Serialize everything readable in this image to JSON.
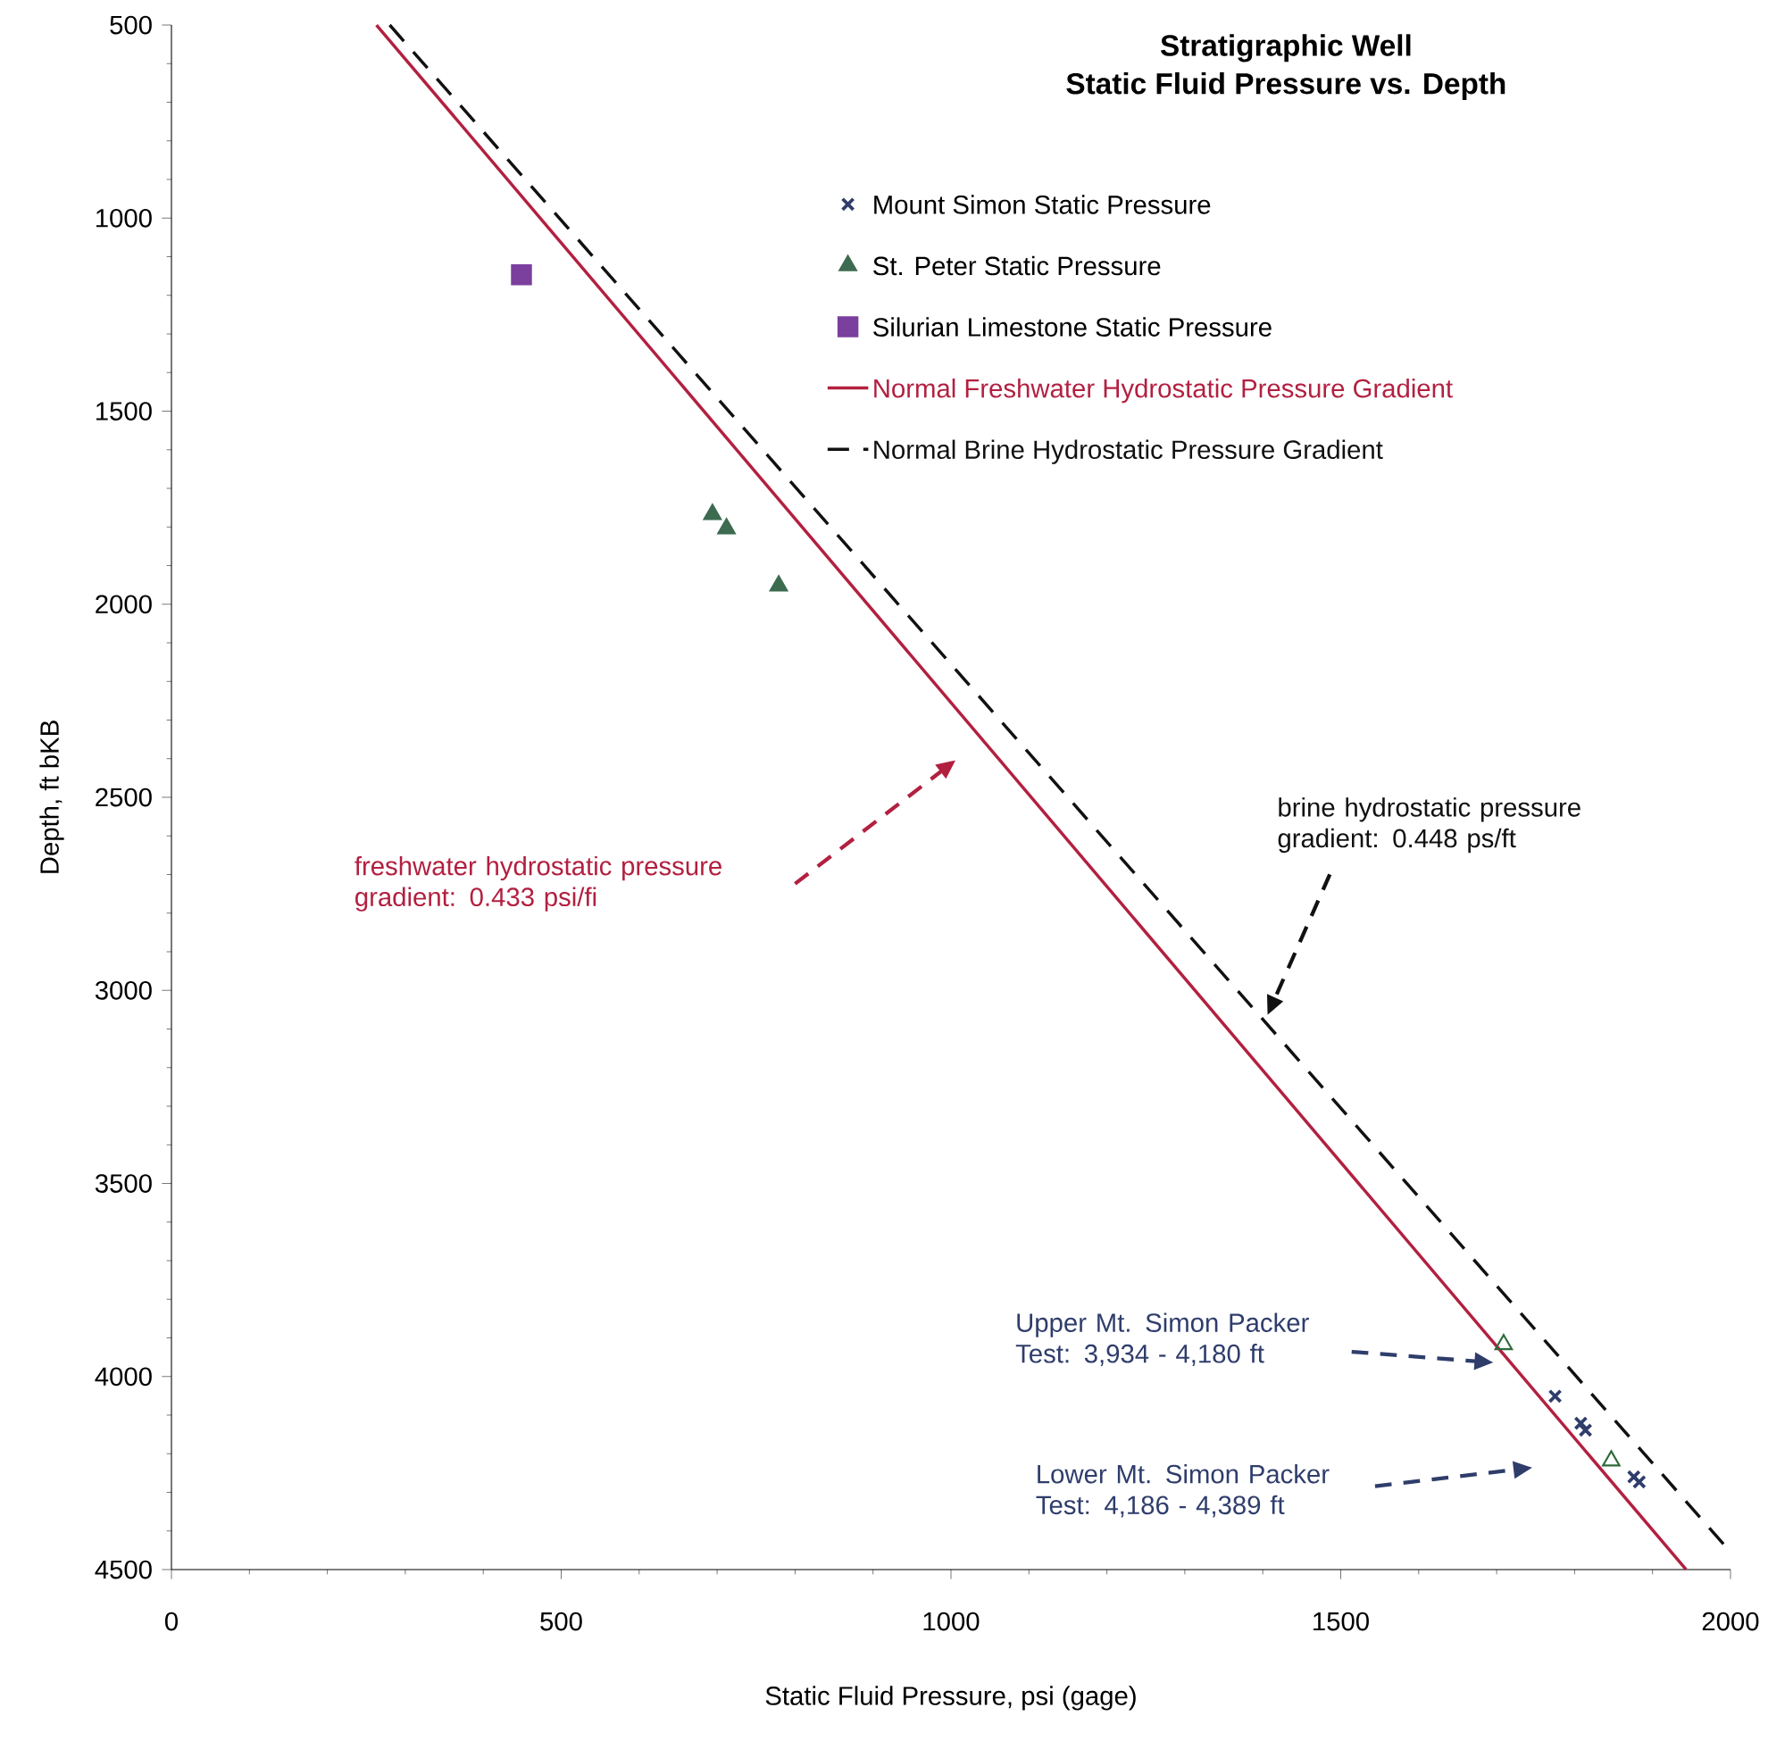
{
  "chart_data": {
    "type": "scatter",
    "title": "Stratigraphic Well",
    "subtitle": "Static Fluid Pressure vs. Depth",
    "xlabel": "Static Fluid Pressure,  psi (gage)",
    "ylabel": "Depth,  ft bKB",
    "xlim": [
      0,
      2000
    ],
    "xticks": [
      0,
      500,
      1000,
      1500,
      2000
    ],
    "ylim": [
      4500,
      500
    ],
    "yticks": [
      500,
      1000,
      1500,
      2000,
      2500,
      3000,
      3500,
      4000,
      4500
    ],
    "legend": "top right",
    "series": [
      {
        "name": "Mount Simon Static Pressure",
        "marker": "cross",
        "color": "#2f3d6b",
        "x": [
          1775,
          1808,
          1814,
          1876,
          1883
        ],
        "values": [
          4051,
          4121,
          4139,
          4260,
          4273
        ]
      },
      {
        "name": "St. Peter Static Pressure",
        "marker": "triangle",
        "color": "#3d6b50",
        "x": [
          694,
          712,
          779
        ],
        "values": [
          1767,
          1804,
          1952
        ]
      },
      {
        "name": "Silurian Limestone Static Pressure",
        "marker": "square",
        "color": "#7b3f9e",
        "x": [
          449
        ],
        "values": [
          1147
        ]
      },
      {
        "marker": "triangle",
        "color": "#2e6b3a",
        "x": [
          1709,
          1847
        ],
        "values": [
          3917,
          4218
        ]
      },
      {
        "name": "Normal Freshwater Hydrostatic Pressure Gradient",
        "type": "line",
        "line_style": "solid",
        "marker": "none",
        "color": "#b22040",
        "x": [
          263,
          1943
        ],
        "values": [
          500,
          4500
        ]
      },
      {
        "name": "Normal Brine Hydrostatic Pressure Gradient",
        "type": "line",
        "line_style": "dashed",
        "marker": "none",
        "color": "#111111",
        "x": [
          280,
          1998
        ],
        "values": [
          500,
          4450
        ]
      }
    ],
    "annotations": [
      "freshwater hydrostatic pressure gradient:  0.433 psi/fi",
      "brine hydrostatic pressure gradient:  0.448 ps/ft",
      "Upper Mt. Simon Packer Test:  3,934 - 4,180 ft",
      "Lower Mt. Simon Packer Test:  4,186 - 4,389 ft"
    ]
  }
}
